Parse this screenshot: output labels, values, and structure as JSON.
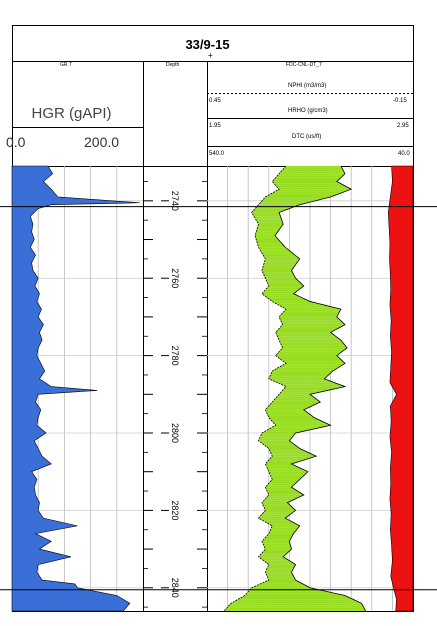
{
  "title": "33/9-15",
  "marker": "+",
  "left_track": {
    "header_small": "GR 7",
    "curve_label": "HGR (gAPI)",
    "scale_min": "0.0",
    "scale_max": "200.0",
    "fill_color": "#3a6fd8"
  },
  "depth_track": {
    "header": "Depth",
    "tick_labels": [
      "2740",
      "2760",
      "2780",
      "2800",
      "2820",
      "2840"
    ]
  },
  "right_track": {
    "header": "FDC-CNL-DT_7",
    "curves": [
      {
        "name": "NPHI (m3/m3)",
        "min": "0.45",
        "max": "-0.15"
      },
      {
        "name": "HRHO (g/cm3)",
        "min": "1.95",
        "max": "2.95"
      },
      {
        "name": "DTC (us/ft)",
        "min": "540.0",
        "max": "40.0"
      }
    ],
    "colors": {
      "crossover_green": "#99dd22",
      "crossover_yellow": "#ffee22",
      "dtc_fill": "#ee1111"
    }
  },
  "chart_data": {
    "type": "area",
    "depth_unit": "m",
    "depth_range": [
      2731,
      2846
    ],
    "depth_ticks": [
      2740,
      2760,
      2780,
      2800,
      2820,
      2840
    ],
    "formation_tops": [
      2741.5,
      2840.5
    ],
    "series": [
      {
        "name": "HGR (gAPI)",
        "xlim": [
          0,
          200
        ],
        "depth": [
          2731,
          2733,
          2735,
          2737,
          2739,
          2740.5,
          2741,
          2742,
          2744,
          2746,
          2748,
          2750,
          2752,
          2754,
          2756,
          2758,
          2760,
          2762,
          2764,
          2766,
          2768,
          2770,
          2772,
          2774,
          2776,
          2778,
          2780,
          2782,
          2784,
          2786,
          2788,
          2789,
          2790,
          2792,
          2794,
          2796,
          2798,
          2800,
          2802,
          2804,
          2806,
          2808,
          2810,
          2812,
          2814,
          2816,
          2818,
          2820,
          2822,
          2824,
          2826,
          2828,
          2830,
          2832,
          2834,
          2836,
          2838,
          2839,
          2840,
          2842,
          2844,
          2846
        ],
        "values": [
          55,
          62,
          48,
          60,
          70,
          195,
          60,
          40,
          28,
          32,
          30,
          34,
          28,
          36,
          30,
          32,
          40,
          35,
          42,
          38,
          45,
          40,
          48,
          42,
          46,
          40,
          38,
          44,
          50,
          42,
          60,
          130,
          40,
          36,
          44,
          40,
          38,
          52,
          34,
          40,
          46,
          60,
          30,
          38,
          34,
          36,
          42,
          40,
          48,
          100,
          36,
          60,
          42,
          90,
          40,
          38,
          46,
          96,
          100,
          160,
          180,
          170
        ]
      },
      {
        "name": "NPHI (m3/m3)",
        "xlim": [
          0.45,
          -0.15
        ],
        "depth": [
          2731,
          2733,
          2735,
          2737,
          2739,
          2741,
          2743,
          2746,
          2749,
          2752,
          2755,
          2758,
          2760,
          2762,
          2764,
          2766,
          2768,
          2770,
          2772,
          2774,
          2776,
          2778,
          2780,
          2782,
          2784,
          2786,
          2788,
          2790,
          2792,
          2794,
          2796,
          2798,
          2800,
          2802,
          2804,
          2806,
          2808,
          2810,
          2812,
          2814,
          2816,
          2818,
          2820,
          2822,
          2824,
          2826,
          2828,
          2830,
          2832,
          2834,
          2836,
          2838,
          2840,
          2842,
          2844,
          2846
        ],
        "values": [
          0.22,
          0.24,
          0.26,
          0.24,
          0.28,
          0.3,
          0.32,
          0.3,
          0.31,
          0.3,
          0.28,
          0.29,
          0.28,
          0.27,
          0.29,
          0.26,
          0.22,
          0.24,
          0.23,
          0.25,
          0.24,
          0.23,
          0.25,
          0.22,
          0.26,
          0.27,
          0.22,
          0.24,
          0.26,
          0.28,
          0.27,
          0.25,
          0.29,
          0.3,
          0.27,
          0.26,
          0.28,
          0.27,
          0.26,
          0.28,
          0.27,
          0.29,
          0.28,
          0.3,
          0.26,
          0.27,
          0.29,
          0.28,
          0.3,
          0.27,
          0.28,
          0.27,
          0.32,
          0.34,
          0.38,
          0.4
        ]
      },
      {
        "name": "HRHO (g/cm3)",
        "xlim": [
          1.95,
          2.95
        ],
        "depth": [
          2731,
          2733,
          2735,
          2737,
          2739,
          2741,
          2743,
          2746,
          2749,
          2752,
          2755,
          2758,
          2760,
          2762,
          2764,
          2766,
          2768,
          2770,
          2772,
          2774,
          2776,
          2778,
          2780,
          2782,
          2784,
          2786,
          2788,
          2790,
          2792,
          2794,
          2796,
          2798,
          2800,
          2802,
          2804,
          2806,
          2808,
          2810,
          2812,
          2814,
          2816,
          2818,
          2820,
          2822,
          2824,
          2826,
          2828,
          2830,
          2832,
          2834,
          2836,
          2838,
          2840,
          2842,
          2844,
          2846
        ],
        "values": [
          2.6,
          2.62,
          2.58,
          2.65,
          2.55,
          2.4,
          2.3,
          2.32,
          2.28,
          2.33,
          2.4,
          2.36,
          2.38,
          2.42,
          2.37,
          2.45,
          2.6,
          2.58,
          2.62,
          2.55,
          2.6,
          2.63,
          2.58,
          2.62,
          2.56,
          2.52,
          2.62,
          2.45,
          2.5,
          2.42,
          2.47,
          2.55,
          2.38,
          2.35,
          2.4,
          2.48,
          2.36,
          2.44,
          2.4,
          2.36,
          2.42,
          2.34,
          2.38,
          2.33,
          2.4,
          2.37,
          2.35,
          2.36,
          2.32,
          2.38,
          2.36,
          2.38,
          2.45,
          2.62,
          2.7,
          2.72
        ]
      },
      {
        "name": "DTC (us/ft)",
        "xlim": [
          540.0,
          40.0
        ],
        "depth": [
          2731,
          2735,
          2739,
          2743,
          2747,
          2751,
          2755,
          2759,
          2763,
          2767,
          2771,
          2775,
          2779,
          2783,
          2787,
          2790,
          2793,
          2797,
          2801,
          2805,
          2809,
          2813,
          2817,
          2821,
          2825,
          2829,
          2833,
          2837,
          2841,
          2843,
          2846
        ],
        "values": [
          92,
          90,
          95,
          100,
          98,
          96,
          97,
          95,
          94,
          96,
          93,
          95,
          92,
          94,
          96,
          80,
          95,
          93,
          96,
          92,
          95,
          94,
          96,
          93,
          95,
          92,
          90,
          94,
          85,
          80,
          82
        ]
      }
    ]
  }
}
